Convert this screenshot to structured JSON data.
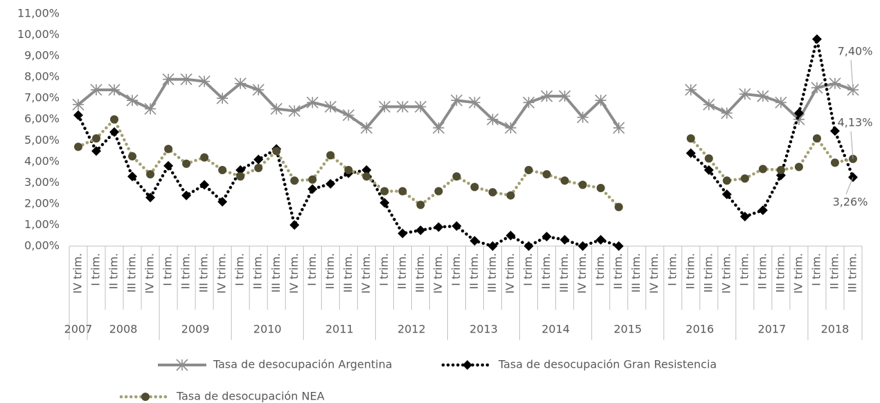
{
  "chart_data": {
    "type": "line",
    "categories": [
      "IV trim.",
      "I trim.",
      "II trim.",
      "III trim.",
      "IV trim.",
      "I trim.",
      "II trim.",
      "III trim.",
      "IV trim.",
      "I trim.",
      "II trim.",
      "III trim.",
      "IV trim.",
      "I trim.",
      "II trim.",
      "III trim.",
      "IV trim.",
      "I trim.",
      "II trim.",
      "III trim.",
      "IV trim.",
      "I trim.",
      "II trim.",
      "III trim.",
      "IV trim.",
      "I trim.",
      "II trim.",
      "III trim.",
      "IV trim.",
      "I trim.",
      "II trim.",
      "III trim.",
      "IV trim.",
      "I trim.",
      "II trim.",
      "III trim.",
      "IV trim.",
      "I trim.",
      "II trim.",
      "III trim.",
      "IV trim.",
      "I trim.",
      "II trim.",
      "III trim."
    ],
    "x_years": [
      "2007",
      "2008",
      "2008",
      "2008",
      "2008",
      "2009",
      "2009",
      "2009",
      "2009",
      "2010",
      "2010",
      "2010",
      "2010",
      "2011",
      "2011",
      "2011",
      "2011",
      "2012",
      "2012",
      "2012",
      "2012",
      "2013",
      "2013",
      "2013",
      "2013",
      "2014",
      "2014",
      "2014",
      "2014",
      "2015",
      "2015",
      "2015",
      "2015",
      "2016",
      "2016",
      "2016",
      "2016",
      "2017",
      "2017",
      "2017",
      "2017",
      "2018",
      "2018",
      "2018"
    ],
    "ylim": [
      0,
      11
    ],
    "yticks": [
      {
        "value": 0,
        "label": "0,00%"
      },
      {
        "value": 1,
        "label": "1,00%"
      },
      {
        "value": 2,
        "label": "2,00%"
      },
      {
        "value": 3,
        "label": "3,00%"
      },
      {
        "value": 4,
        "label": "4,00%"
      },
      {
        "value": 5,
        "label": "5,00%"
      },
      {
        "value": 6,
        "label": "6,00%"
      },
      {
        "value": 7,
        "label": "7,00%"
      },
      {
        "value": 8,
        "label": "8,00%"
      },
      {
        "value": 9,
        "label": "9,00%"
      },
      {
        "value": 10,
        "label": "10,00%"
      },
      {
        "value": 11,
        "label": "11,00%"
      }
    ],
    "grid": false,
    "legend": "bottom",
    "series": [
      {
        "name": "Tasa de desocupación Argentina",
        "color": "#8c8c8c",
        "marker": "star",
        "dash": "solid",
        "values": [
          6.7,
          7.4,
          7.4,
          6.9,
          6.5,
          7.9,
          7.9,
          7.8,
          7.0,
          7.7,
          7.4,
          6.5,
          6.4,
          6.8,
          6.6,
          6.2,
          5.6,
          6.6,
          6.6,
          6.6,
          5.6,
          6.9,
          6.8,
          6.0,
          5.6,
          6.8,
          7.1,
          7.1,
          6.1,
          6.9,
          5.6,
          null,
          null,
          null,
          7.4,
          6.7,
          6.3,
          7.2,
          7.1,
          6.8,
          6.0,
          7.5,
          7.7,
          7.4
        ],
        "value_labels": [
          null,
          null,
          null,
          null,
          null,
          null,
          null,
          null,
          null,
          null,
          null,
          null,
          null,
          null,
          null,
          null,
          null,
          null,
          null,
          null,
          null,
          null,
          null,
          null,
          null,
          null,
          null,
          null,
          null,
          null,
          null,
          null,
          null,
          null,
          null,
          null,
          null,
          null,
          null,
          null,
          null,
          null,
          null,
          "7,40%"
        ]
      },
      {
        "name": "Tasa de desocupación Gran Resistencia",
        "color": "#000000",
        "marker": "diamond",
        "dash": "dot",
        "values": [
          6.2,
          4.5,
          5.4,
          3.3,
          2.3,
          3.8,
          2.4,
          2.9,
          2.1,
          3.6,
          4.1,
          4.6,
          1.0,
          2.7,
          2.95,
          3.45,
          3.6,
          2.05,
          0.6,
          0.75,
          0.9,
          0.95,
          0.25,
          0.0,
          0.5,
          0.0,
          0.45,
          0.3,
          0.0,
          0.3,
          0.0,
          null,
          null,
          null,
          4.4,
          3.6,
          2.45,
          1.4,
          1.7,
          3.35,
          6.3,
          9.8,
          5.45,
          3.26
        ],
        "value_labels": [
          null,
          null,
          null,
          null,
          null,
          null,
          null,
          null,
          null,
          null,
          null,
          null,
          null,
          null,
          null,
          null,
          null,
          null,
          null,
          null,
          null,
          null,
          null,
          null,
          null,
          null,
          null,
          null,
          null,
          null,
          null,
          null,
          null,
          null,
          null,
          null,
          null,
          null,
          null,
          null,
          null,
          null,
          null,
          "3,26%"
        ]
      },
      {
        "name": "Tasa de desocupación NEA",
        "color": "#a39f72",
        "marker_color": "#4f4c30",
        "marker": "circle",
        "dash": "dot",
        "values": [
          4.7,
          5.1,
          6.0,
          4.25,
          3.4,
          4.6,
          3.9,
          4.2,
          3.6,
          3.3,
          3.7,
          4.5,
          3.1,
          3.15,
          4.3,
          3.6,
          3.3,
          2.6,
          2.6,
          1.95,
          2.6,
          3.3,
          2.8,
          2.55,
          2.4,
          3.6,
          3.4,
          3.1,
          2.9,
          2.75,
          1.85,
          null,
          null,
          null,
          5.1,
          4.15,
          3.1,
          3.2,
          3.65,
          3.6,
          3.75,
          5.1,
          3.95,
          4.13
        ],
        "value_labels": [
          null,
          null,
          null,
          null,
          null,
          null,
          null,
          null,
          null,
          null,
          null,
          null,
          null,
          null,
          null,
          null,
          null,
          null,
          null,
          null,
          null,
          null,
          null,
          null,
          null,
          null,
          null,
          null,
          null,
          null,
          null,
          null,
          null,
          null,
          null,
          null,
          null,
          null,
          null,
          null,
          null,
          null,
          null,
          "4,13%"
        ]
      }
    ]
  }
}
